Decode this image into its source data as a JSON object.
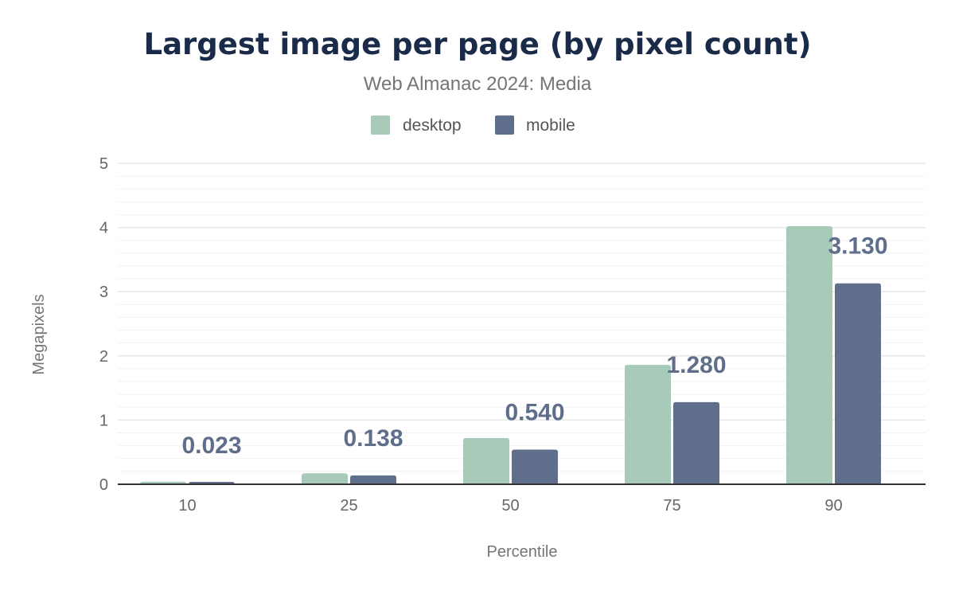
{
  "chart_data": {
    "type": "bar",
    "title": "Largest image per page (by pixel count)",
    "subtitle": "Web Almanac 2024: Media",
    "xlabel": "Percentile",
    "ylabel": "Megapixels",
    "categories": [
      "10",
      "25",
      "50",
      "75",
      "90"
    ],
    "ylim": [
      0,
      5
    ],
    "yticks": [
      "0",
      "1",
      "2",
      "3",
      "4",
      "5"
    ],
    "grid": true,
    "legend": "top-center",
    "series": [
      {
        "name": "desktop",
        "color": "#a8cab9",
        "values": [
          0.04,
          0.17,
          0.72,
          1.86,
          4.02
        ]
      },
      {
        "name": "mobile",
        "color": "#5f6f8b",
        "values": [
          0.023,
          0.138,
          0.54,
          1.28,
          3.13
        ],
        "data_labels": [
          "0.023",
          "0.138",
          "0.540",
          "1.280",
          "3.130"
        ]
      }
    ]
  }
}
